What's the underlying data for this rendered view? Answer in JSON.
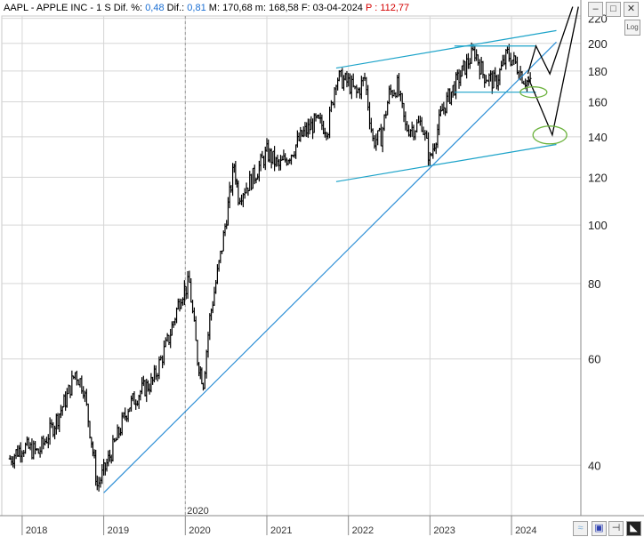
{
  "header": {
    "symbol": "AAPL - APPLE INC -",
    "timeframe": "1 S",
    "dif_pct_label": "Dif. %:",
    "dif_pct_value": "0,48",
    "dif_label": "Dif.:",
    "dif_value": "0,81",
    "max_label": "M:",
    "max_value": "170,68",
    "min_label": "m:",
    "min_value": "168,58",
    "date_label": "F:",
    "date_value": "03-04-2024",
    "p_label": "P :",
    "p_value": "112,77"
  },
  "controls": {
    "log_label": "Log",
    "window_buttons": [
      "minimize-icon",
      "maximize-icon",
      "close-icon"
    ],
    "bottom_buttons": [
      "wave-icon",
      "save-icon",
      "pin-icon",
      "arrow-icon"
    ]
  },
  "colors": {
    "price": "#000000",
    "trendline": "#1ca3c9",
    "support": "#2d8fd6",
    "target_ellipse": "#6db33f",
    "projection": "#000000",
    "grid": "#d6d6d6",
    "dif_value": "#1b6fd3",
    "p_value": "#d40000"
  },
  "chart_data": {
    "type": "candlestick",
    "title": "AAPL - APPLE INC - 1 S",
    "y_scale": "log",
    "ylim": [
      33,
      222
    ],
    "y_ticks": [
      40,
      60,
      80,
      100,
      120,
      140,
      160,
      180,
      200,
      220
    ],
    "x_ticks": [
      "2018",
      "2019",
      "2020",
      "2021",
      "2022",
      "2023",
      "2024"
    ],
    "x_marker": "2020",
    "grid": true,
    "series": [
      {
        "name": "AAPL",
        "x": [
          2017.85,
          2018.0,
          2018.2,
          2018.4,
          2018.55,
          2018.65,
          2018.75,
          2018.85,
          2018.92,
          2019.0,
          2019.15,
          2019.3,
          2019.45,
          2019.6,
          2019.8,
          2019.95,
          2020.05,
          2020.15,
          2020.22,
          2020.3,
          2020.45,
          2020.6,
          2020.65,
          2020.75,
          2020.85,
          2021.0,
          2021.15,
          2021.3,
          2021.45,
          2021.6,
          2021.75,
          2021.85,
          2022.0,
          2022.1,
          2022.2,
          2022.3,
          2022.4,
          2022.5,
          2022.6,
          2022.7,
          2022.8,
          2022.9,
          2023.0,
          2023.15,
          2023.3,
          2023.45,
          2023.55,
          2023.65,
          2023.8,
          2023.95,
          2024.05,
          2024.15,
          2024.25
        ],
        "values": [
          41,
          43,
          42,
          47,
          52,
          57,
          54,
          44,
          37,
          39,
          44,
          50,
          53,
          55,
          65,
          77,
          80,
          60,
          55,
          70,
          92,
          126,
          112,
          116,
          121,
          132,
          125,
          132,
          142,
          148,
          145,
          176,
          172,
          165,
          175,
          138,
          140,
          165,
          170,
          145,
          145,
          148,
          128,
          155,
          170,
          185,
          194,
          178,
          172,
          192,
          185,
          175,
          170
        ],
        "ylabel": ""
      }
    ],
    "trendlines": [
      {
        "name": "channel-top",
        "from": {
          "x": 2021.85,
          "y": 182
        },
        "to": {
          "x": 2024.55,
          "y": 210
        }
      },
      {
        "name": "channel-bottom",
        "from": {
          "x": 2021.85,
          "y": 118
        },
        "to": {
          "x": 2024.55,
          "y": 136
        }
      },
      {
        "name": "long-support",
        "from": {
          "x": 2019.0,
          "y": 36
        },
        "to": {
          "x": 2024.55,
          "y": 201
        }
      },
      {
        "name": "range-top",
        "from": {
          "x": 2023.3,
          "y": 198
        },
        "to": {
          "x": 2024.3,
          "y": 198
        }
      },
      {
        "name": "range-bottom",
        "from": {
          "x": 2023.3,
          "y": 166
        },
        "to": {
          "x": 2024.3,
          "y": 166
        }
      }
    ],
    "projections": [
      {
        "name": "bullish-path",
        "points": [
          {
            "x": 2024.2,
            "y": 178
          },
          {
            "x": 2024.3,
            "y": 198
          },
          {
            "x": 2024.47,
            "y": 178
          },
          {
            "x": 2024.75,
            "y": 230
          }
        ]
      },
      {
        "name": "bearish-path",
        "points": [
          {
            "x": 2024.2,
            "y": 176
          },
          {
            "x": 2024.5,
            "y": 141
          },
          {
            "x": 2024.82,
            "y": 230
          }
        ]
      }
    ],
    "target_zones": [
      {
        "name": "target-1",
        "x": 2024.27,
        "y": 166
      },
      {
        "name": "target-2",
        "x": 2024.47,
        "y": 141
      }
    ]
  }
}
